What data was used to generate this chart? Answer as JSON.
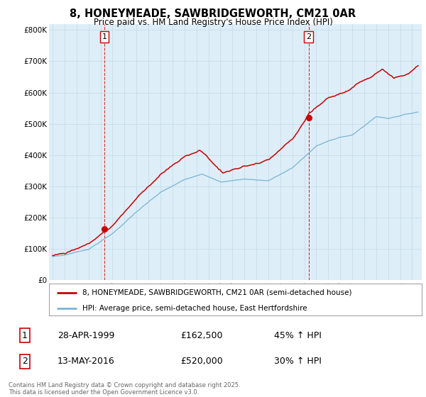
{
  "title": "8, HONEYMEADE, SAWBRIDGEWORTH, CM21 0AR",
  "subtitle": "Price paid vs. HM Land Registry's House Price Index (HPI)",
  "ylabel_ticks": [
    "£0",
    "£100K",
    "£200K",
    "£300K",
    "£400K",
    "£500K",
    "£600K",
    "£700K",
    "£800K"
  ],
  "ytick_values": [
    0,
    100000,
    200000,
    300000,
    400000,
    500000,
    600000,
    700000,
    800000
  ],
  "ylim": [
    0,
    820000
  ],
  "xlim_start": 1994.7,
  "xlim_end": 2025.8,
  "sale1_x": 1999.32,
  "sale1_y": 162500,
  "sale2_x": 2016.37,
  "sale2_y": 520000,
  "hpi_color": "#7ab3d4",
  "price_color": "#cc0000",
  "plot_bg_color": "#ddeef8",
  "legend_label_price": "8, HONEYMEADE, SAWBRIDGEWORTH, CM21 0AR (semi-detached house)",
  "legend_label_hpi": "HPI: Average price, semi-detached house, East Hertfordshire",
  "table_row1_num": "1",
  "table_row1_date": "28-APR-1999",
  "table_row1_price": "£162,500",
  "table_row1_hpi": "45% ↑ HPI",
  "table_row2_num": "2",
  "table_row2_date": "13-MAY-2016",
  "table_row2_price": "£520,000",
  "table_row2_hpi": "30% ↑ HPI",
  "footnote": "Contains HM Land Registry data © Crown copyright and database right 2025.\nThis data is licensed under the Open Government Licence v3.0.",
  "background_color": "#ffffff",
  "grid_color": "#c8dce8",
  "vline_color": "#cc0000"
}
